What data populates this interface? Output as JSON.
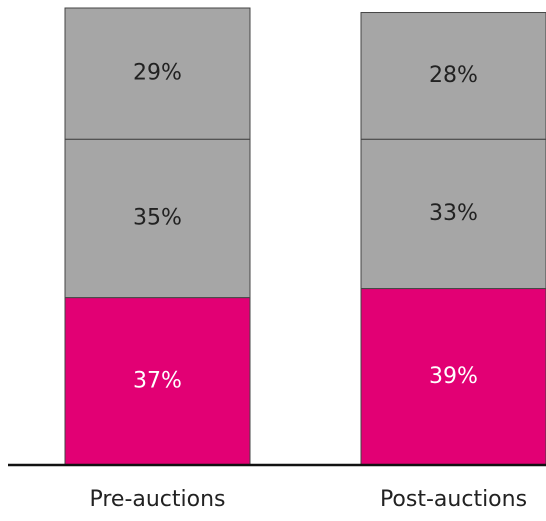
{
  "chart_data": {
    "type": "stacked_bar",
    "categories": [
      "Pre-auctions",
      "Post-auctions"
    ],
    "series": [
      {
        "color": "#e20074",
        "label_color": "#ffffff",
        "values": [
          37,
          39
        ],
        "value_labels": [
          "37%",
          "39%"
        ]
      },
      {
        "color": "#a6a6a6",
        "label_color": "#222222",
        "values": [
          35,
          33
        ],
        "value_labels": [
          "35%",
          "33%"
        ]
      },
      {
        "color": "#a6a6a6",
        "label_color": "#222222",
        "values": [
          29,
          28
        ],
        "value_labels": [
          "29%",
          "28%"
        ]
      }
    ]
  }
}
